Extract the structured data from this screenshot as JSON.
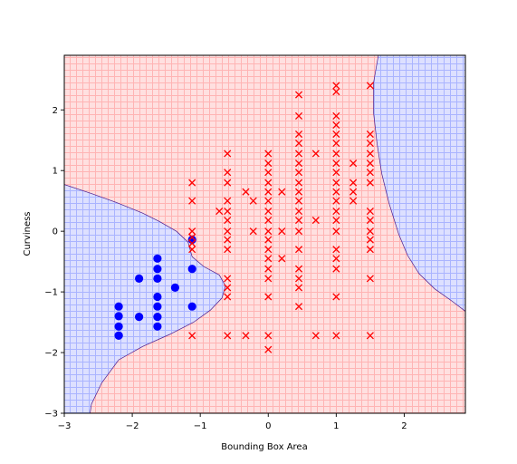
{
  "chart_data": {
    "type": "scatter",
    "title": "",
    "xlabel": "Bounding Box Area",
    "ylabel": "Curviness",
    "xlim": [
      -3.0,
      2.9
    ],
    "ylim": [
      -3.0,
      2.9
    ],
    "xticks": [
      -3,
      -2,
      -1,
      0,
      1,
      2
    ],
    "yticks": [
      -3,
      -2,
      -1,
      0,
      1,
      2
    ],
    "grid": false,
    "legend": "none",
    "background": {
      "description": "decision regions (hatched): class 0 region blue, class 1 region red",
      "class_0_fill": "#dde0ff",
      "class_1_fill": "#ffe0e0",
      "class_0_hatch": "#aab4ff",
      "class_1_hatch": "#ffb4b4",
      "boundary_color": "#4b1a8c",
      "class_0_regions": [
        [
          [
            -3.0,
            0.77
          ],
          [
            -2.6,
            0.62
          ],
          [
            -2.2,
            0.46
          ],
          [
            -1.85,
            0.3
          ],
          [
            -1.6,
            0.16
          ],
          [
            -1.35,
            0.0
          ],
          [
            -1.18,
            -0.18
          ],
          [
            -1.12,
            -0.42
          ],
          [
            -0.95,
            -0.58
          ],
          [
            -0.72,
            -0.72
          ],
          [
            -0.63,
            -0.9
          ],
          [
            -0.68,
            -1.1
          ],
          [
            -0.85,
            -1.3
          ],
          [
            -1.1,
            -1.5
          ],
          [
            -1.45,
            -1.7
          ],
          [
            -1.85,
            -1.9
          ],
          [
            -2.2,
            -2.12
          ],
          [
            -2.45,
            -2.5
          ],
          [
            -2.6,
            -2.85
          ],
          [
            -2.62,
            -3.0
          ],
          [
            -3.0,
            -3.0
          ]
        ],
        [
          [
            1.62,
            2.9
          ],
          [
            2.9,
            2.9
          ],
          [
            2.9,
            -1.32
          ],
          [
            2.7,
            -1.15
          ],
          [
            2.45,
            -0.95
          ],
          [
            2.22,
            -0.7
          ],
          [
            2.05,
            -0.4
          ],
          [
            1.92,
            -0.05
          ],
          [
            1.78,
            0.45
          ],
          [
            1.67,
            0.95
          ],
          [
            1.6,
            1.45
          ],
          [
            1.55,
            1.95
          ],
          [
            1.55,
            2.45
          ],
          [
            1.62,
            2.9
          ]
        ]
      ]
    },
    "series": [
      {
        "name": "",
        "marker": "circle",
        "color": "#0000ff",
        "points": [
          [
            -2.2,
            -1.72
          ],
          [
            -2.2,
            -1.57
          ],
          [
            -2.2,
            -1.4
          ],
          [
            -2.2,
            -1.24
          ],
          [
            -2.2,
            -1.72
          ],
          [
            -1.9,
            -1.41
          ],
          [
            -1.9,
            -0.78
          ],
          [
            -1.63,
            -0.45
          ],
          [
            -1.63,
            -0.62
          ],
          [
            -1.63,
            -0.78
          ],
          [
            -1.63,
            -1.08
          ],
          [
            -1.63,
            -1.24
          ],
          [
            -1.63,
            -1.41
          ],
          [
            -1.63,
            -1.57
          ],
          [
            -1.37,
            -0.93
          ],
          [
            -1.12,
            -0.14
          ],
          [
            -1.12,
            -0.62
          ],
          [
            -1.12,
            -1.24
          ]
        ]
      },
      {
        "name": "",
        "marker": "x",
        "color": "#ff0000",
        "points": [
          [
            -1.12,
            0.8
          ],
          [
            -1.12,
            0.5
          ],
          [
            -1.12,
            0.0
          ],
          [
            -1.12,
            -0.1
          ],
          [
            -1.12,
            -0.2
          ],
          [
            -1.12,
            -0.3
          ],
          [
            -1.12,
            -1.72
          ],
          [
            -0.72,
            0.33
          ],
          [
            -0.6,
            1.28
          ],
          [
            -0.6,
            0.97
          ],
          [
            -0.6,
            0.8
          ],
          [
            -0.6,
            0.5
          ],
          [
            -0.6,
            0.33
          ],
          [
            -0.6,
            0.18
          ],
          [
            -0.6,
            0.0
          ],
          [
            -0.6,
            -0.14
          ],
          [
            -0.6,
            -0.3
          ],
          [
            -0.6,
            -0.78
          ],
          [
            -0.6,
            -0.93
          ],
          [
            -0.6,
            -1.08
          ],
          [
            -0.6,
            -1.72
          ],
          [
            -0.33,
            0.65
          ],
          [
            -0.33,
            -1.72
          ],
          [
            -0.22,
            0.5
          ],
          [
            -0.22,
            0.0
          ],
          [
            0.0,
            1.28
          ],
          [
            0.0,
            1.12
          ],
          [
            0.0,
            0.97
          ],
          [
            0.0,
            0.8
          ],
          [
            0.0,
            0.65
          ],
          [
            0.0,
            0.5
          ],
          [
            0.0,
            0.33
          ],
          [
            0.0,
            0.18
          ],
          [
            0.0,
            0.0
          ],
          [
            0.0,
            -0.14
          ],
          [
            0.0,
            -0.3
          ],
          [
            0.0,
            -0.45
          ],
          [
            0.0,
            -0.62
          ],
          [
            0.0,
            -0.78
          ],
          [
            0.0,
            -1.08
          ],
          [
            0.0,
            -1.72
          ],
          [
            0.0,
            -1.95
          ],
          [
            0.2,
            0.65
          ],
          [
            0.2,
            0.0
          ],
          [
            0.2,
            -0.45
          ],
          [
            0.45,
            2.25
          ],
          [
            0.45,
            1.9
          ],
          [
            0.45,
            1.6
          ],
          [
            0.45,
            1.45
          ],
          [
            0.45,
            1.28
          ],
          [
            0.45,
            1.12
          ],
          [
            0.45,
            0.97
          ],
          [
            0.45,
            0.8
          ],
          [
            0.45,
            0.65
          ],
          [
            0.45,
            0.5
          ],
          [
            0.45,
            0.33
          ],
          [
            0.45,
            0.18
          ],
          [
            0.45,
            0.0
          ],
          [
            0.45,
            -0.3
          ],
          [
            0.45,
            -0.62
          ],
          [
            0.45,
            -0.78
          ],
          [
            0.45,
            -0.93
          ],
          [
            0.45,
            -1.24
          ],
          [
            0.7,
            1.28
          ],
          [
            0.7,
            0.18
          ],
          [
            0.7,
            -1.72
          ],
          [
            1.0,
            2.4
          ],
          [
            1.0,
            2.3
          ],
          [
            1.0,
            1.9
          ],
          [
            1.0,
            1.75
          ],
          [
            1.0,
            1.6
          ],
          [
            1.0,
            1.45
          ],
          [
            1.0,
            1.28
          ],
          [
            1.0,
            1.12
          ],
          [
            1.0,
            0.97
          ],
          [
            1.0,
            0.8
          ],
          [
            1.0,
            0.65
          ],
          [
            1.0,
            0.5
          ],
          [
            1.0,
            0.33
          ],
          [
            1.0,
            0.18
          ],
          [
            1.0,
            0.0
          ],
          [
            1.0,
            -0.3
          ],
          [
            1.0,
            -0.45
          ],
          [
            1.0,
            -0.62
          ],
          [
            1.0,
            -1.08
          ],
          [
            1.0,
            -1.72
          ],
          [
            1.25,
            1.12
          ],
          [
            1.25,
            0.8
          ],
          [
            1.25,
            0.65
          ],
          [
            1.25,
            0.5
          ],
          [
            1.5,
            2.4
          ],
          [
            1.5,
            1.6
          ],
          [
            1.5,
            1.45
          ],
          [
            1.5,
            1.28
          ],
          [
            1.5,
            1.12
          ],
          [
            1.5,
            0.97
          ],
          [
            1.5,
            0.8
          ],
          [
            1.5,
            0.33
          ],
          [
            1.5,
            0.18
          ],
          [
            1.5,
            0.0
          ],
          [
            1.5,
            -0.14
          ],
          [
            1.5,
            -0.3
          ],
          [
            1.5,
            -0.78
          ],
          [
            1.5,
            -1.72
          ]
        ]
      }
    ]
  }
}
